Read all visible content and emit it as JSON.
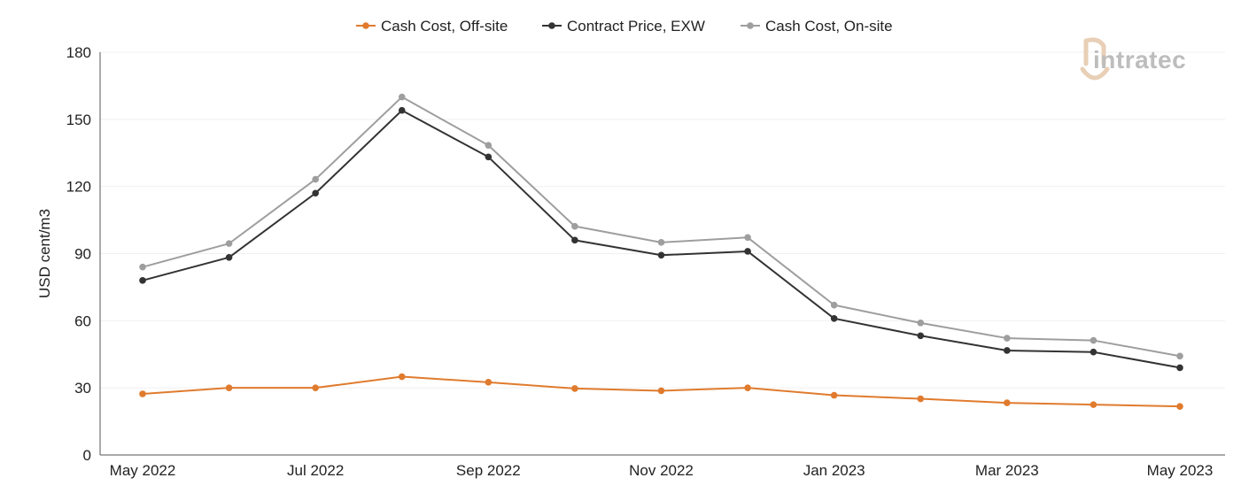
{
  "chart_data": {
    "type": "line",
    "ylabel": "USD cent/m3",
    "ylim": [
      0,
      180
    ],
    "yticks": [
      0,
      30,
      60,
      90,
      120,
      150,
      180
    ],
    "x": [
      "May 2022",
      "Jun 2022",
      "Jul 2022",
      "Aug 2022",
      "Sep 2022",
      "Oct 2022",
      "Nov 2022",
      "Dec 2022",
      "Jan 2023",
      "Feb 2023",
      "Mar 2023",
      "Apr 2023",
      "May 2023"
    ],
    "xtick_labels": [
      "May 2022",
      "",
      "Jul 2022",
      "",
      "Sep 2022",
      "",
      "Nov 2022",
      "",
      "Jan 2023",
      "",
      "Mar 2023",
      "",
      "May 2023"
    ],
    "grid": true,
    "legend_position": "top-center",
    "series": [
      {
        "name": "Cash Cost, Off-site",
        "color": "#E07B2E",
        "values": [
          27.3,
          30.0,
          30.0,
          35.0,
          32.5,
          29.7,
          28.7,
          30.0,
          26.7,
          25.1,
          23.3,
          22.5,
          21.7
        ]
      },
      {
        "name": "Contract Price, EXW",
        "color": "#333333",
        "values": [
          78.0,
          88.3,
          117.0,
          154.0,
          133.2,
          96.0,
          89.3,
          91.0,
          61.0,
          53.3,
          46.7,
          46.0,
          39.0
        ]
      },
      {
        "name": "Cash Cost, On-site",
        "color": "#9E9E9E",
        "values": [
          84.0,
          94.5,
          123.2,
          160.0,
          138.4,
          102.2,
          95.0,
          97.2,
          67.0,
          59.0,
          52.2,
          51.2,
          44.2
        ]
      }
    ]
  },
  "logo": {
    "text": "intratec"
  }
}
